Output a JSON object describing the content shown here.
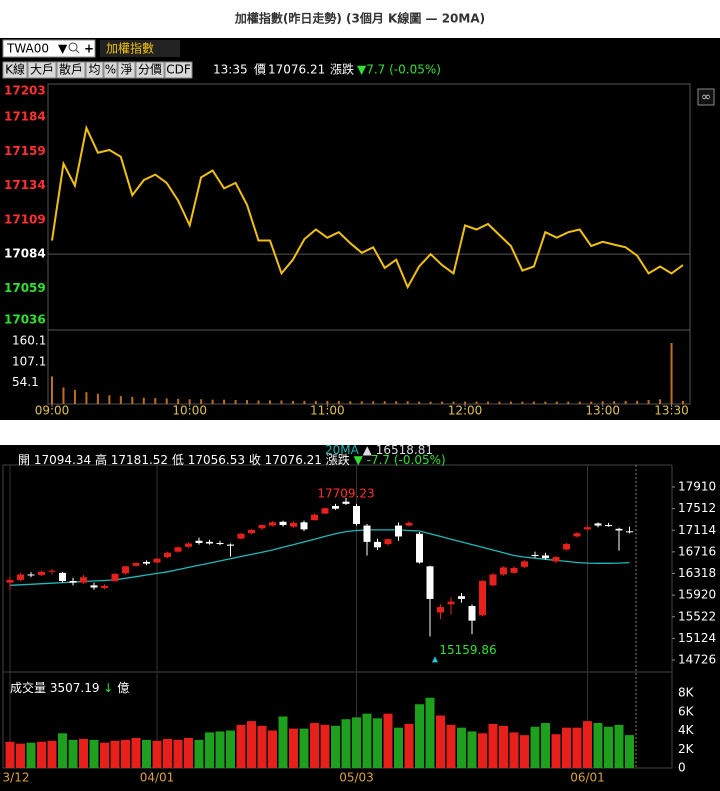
{
  "title": "加權指數(昨日走勢) (3個月 K線圖 — 20MA)",
  "toolbar": {
    "symbol": "TWA00",
    "name": "加權指數",
    "buttons": [
      "K線",
      "大戶",
      "散戶",
      "均",
      "%",
      "淨",
      "分價",
      "CDF"
    ],
    "time": "13:35",
    "price_label": "價",
    "change_label": "漲跌",
    "change": "▼7.7 (-0.05%)"
  },
  "quote": {
    "open_label": "開",
    "high_label": "高",
    "low_label": "低",
    "close_label": "收",
    "change_label": "漲跌",
    "change": "▼ -7.7 (-0.05%)",
    "ma_arrow": "▲",
    "volume_label": "成交量",
    "volume_arrow": "↓",
    "volume_unit": "億"
  },
  "chart_data": [
    {
      "type": "line",
      "color": "#f0c010",
      "x": [
        "09:00",
        "09:05",
        "09:10",
        "09:15",
        "09:20",
        "09:25",
        "09:30",
        "09:35",
        "09:40",
        "09:45",
        "09:50",
        "09:55",
        "10:00",
        "10:05",
        "10:10",
        "10:15",
        "10:20",
        "10:25",
        "10:30",
        "10:35",
        "10:40",
        "10:45",
        "10:50",
        "10:55",
        "11:00",
        "11:05",
        "11:10",
        "11:15",
        "11:20",
        "11:25",
        "11:30",
        "11:35",
        "11:40",
        "11:45",
        "11:50",
        "11:55",
        "12:00",
        "12:05",
        "12:10",
        "12:15",
        "12:20",
        "12:25",
        "12:30",
        "12:35",
        "12:40",
        "12:45",
        "12:50",
        "12:55",
        "13:00",
        "13:05",
        "13:10",
        "13:15",
        "13:20",
        "13:25",
        "13:30",
        "13:35"
      ],
      "values": [
        17094,
        17150,
        17134,
        17176,
        17158,
        17160,
        17155,
        17127,
        17138,
        17142,
        17136,
        17123,
        17105,
        17140,
        17145,
        17132,
        17136,
        17120,
        17094,
        17094,
        17070,
        17080,
        17095,
        17102,
        17096,
        17100,
        17092,
        17085,
        17089,
        17074,
        17080,
        17060,
        17075,
        17084,
        17076,
        17070,
        17105,
        17102,
        17106,
        17098,
        17090,
        17072,
        17075,
        17100,
        17096,
        17100,
        17102,
        17090,
        17093,
        17091,
        17089,
        17083,
        17070,
        17075,
        17070,
        17076
      ],
      "xlim": [
        "09:00",
        "13:35"
      ],
      "xticks": [
        "09:00",
        "10:00",
        "11:00",
        "12:00",
        "13:00",
        "13:30"
      ],
      "ylim": [
        17036,
        17203
      ],
      "yticks": [
        17036,
        17059,
        17084,
        17109,
        17134,
        17159,
        17184,
        17203
      ],
      "ytick_colors": [
        "#30e030",
        "#30e030",
        "#ffffff",
        "#ff3030",
        "#ff3030",
        "#ff3030",
        "#ff3030",
        "#ff3030"
      ],
      "ref_line": 17084
    },
    {
      "type": "bar",
      "color": "#c0701c",
      "x": [
        "09:00",
        "09:05",
        "09:10",
        "09:15",
        "09:20",
        "09:25",
        "09:30",
        "09:35",
        "09:40",
        "09:45",
        "09:50",
        "09:55",
        "10:00",
        "10:05",
        "10:10",
        "10:15",
        "10:20",
        "10:25",
        "10:30",
        "10:35",
        "10:40",
        "10:45",
        "10:50",
        "10:55",
        "11:00",
        "11:05",
        "11:10",
        "11:15",
        "11:20",
        "11:25",
        "11:30",
        "11:35",
        "11:40",
        "11:45",
        "11:50",
        "11:55",
        "12:00",
        "12:05",
        "12:10",
        "12:15",
        "12:20",
        "12:25",
        "12:30",
        "12:35",
        "12:40",
        "12:45",
        "12:50",
        "12:55",
        "13:00",
        "13:05",
        "13:10",
        "13:15",
        "13:20",
        "13:25",
        "13:30",
        "13:35"
      ],
      "values": [
        70,
        42,
        36,
        30,
        26,
        22,
        20,
        18,
        16,
        15,
        14,
        13,
        12,
        12,
        11,
        11,
        10,
        10,
        9,
        9,
        9,
        8,
        8,
        8,
        8,
        8,
        7,
        7,
        7,
        7,
        7,
        7,
        6,
        6,
        6,
        6,
        6,
        6,
        6,
        6,
        6,
        6,
        6,
        6,
        6,
        6,
        6,
        6,
        7,
        7,
        8,
        8,
        10,
        12,
        155,
        8
      ],
      "xlim": [
        "09:00",
        "13:35"
      ],
      "ylim": [
        0,
        160.1
      ],
      "yticks": [
        54.1,
        107.1,
        160.1
      ]
    },
    {
      "type": "candlestick",
      "up_color": "#e8201c",
      "down_color": "#ffffff",
      "categories": [
        "3/12",
        null,
        null,
        null,
        null,
        null,
        null,
        null,
        null,
        null,
        null,
        null,
        null,
        null,
        "04/01",
        null,
        null,
        null,
        null,
        null,
        null,
        null,
        null,
        null,
        null,
        null,
        null,
        null,
        null,
        null,
        null,
        null,
        null,
        "05/03",
        null,
        null,
        null,
        null,
        null,
        null,
        null,
        null,
        null,
        null,
        null,
        null,
        null,
        null,
        null,
        null,
        null,
        null,
        null,
        null,
        null,
        "06/01",
        null,
        null,
        null,
        null
      ],
      "open": [
        16150,
        16200,
        16300,
        16290,
        16350,
        16330,
        16180,
        16150,
        16100,
        16050,
        16180,
        16320,
        16460,
        16530,
        16520,
        16620,
        16720,
        16810,
        16920,
        16900,
        16880,
        16850,
        16960,
        17060,
        17150,
        17200,
        17270,
        17180,
        17260,
        17300,
        17420,
        17560,
        17640,
        17560,
        17200,
        16900,
        16860,
        17200,
        17200,
        17050,
        16450,
        15600,
        15750,
        15900,
        15720,
        15550,
        16100,
        16300,
        16330,
        16440,
        16660,
        16650,
        16540,
        16760,
        17000,
        17130,
        17240,
        17210,
        17140,
        17094.34
      ],
      "high": [
        16260,
        16330,
        16340,
        16370,
        16400,
        16340,
        16240,
        16290,
        16150,
        16120,
        16330,
        16460,
        16520,
        16560,
        16600,
        16720,
        16820,
        16890,
        16980,
        16940,
        16920,
        16870,
        17060,
        17140,
        17220,
        17280,
        17290,
        17280,
        17290,
        17420,
        17530,
        17600,
        17709.23,
        17600,
        17230,
        16960,
        16960,
        17260,
        17280,
        17080,
        16460,
        15750,
        15880,
        15960,
        15750,
        16200,
        16330,
        16450,
        16450,
        16560,
        16720,
        16700,
        16640,
        16880,
        17080,
        17190,
        17260,
        17250,
        17160,
        17181.52
      ],
      "low": [
        16020,
        16180,
        16250,
        16270,
        16300,
        16150,
        16100,
        16130,
        16020,
        16030,
        16160,
        16300,
        16440,
        16470,
        16510,
        16600,
        16700,
        16790,
        16850,
        16850,
        16840,
        16630,
        16950,
        17040,
        17120,
        17180,
        17180,
        17160,
        17100,
        17290,
        17410,
        17490,
        17580,
        17200,
        16650,
        16750,
        16830,
        16920,
        17180,
        16500,
        15159.86,
        15480,
        15560,
        15780,
        15200,
        15530,
        16080,
        16280,
        16310,
        16420,
        16610,
        16570,
        16510,
        16740,
        16980,
        17110,
        17170,
        17180,
        16740,
        17056.53
      ],
      "close": [
        16200,
        16300,
        16290,
        16350,
        16370,
        16180,
        16150,
        16250,
        16060,
        16090,
        16310,
        16450,
        16510,
        16500,
        16590,
        16700,
        16800,
        16870,
        16880,
        16870,
        16860,
        16830,
        17050,
        17120,
        17210,
        17260,
        17210,
        17250,
        17130,
        17400,
        17520,
        17510,
        17600,
        17230,
        16900,
        16800,
        16950,
        17000,
        17250,
        16520,
        15850,
        15700,
        15800,
        15850,
        15450,
        16180,
        16300,
        16430,
        16420,
        16540,
        16640,
        16600,
        16620,
        16860,
        17060,
        17170,
        17200,
        17190,
        17110,
        17076.21
      ],
      "series": [
        {
          "name": "20MA",
          "color": "#20b8b8",
          "values": [
            16100,
            16110,
            16120,
            16130,
            16140,
            16150,
            16160,
            16170,
            16180,
            16190,
            16200,
            16230,
            16260,
            16290,
            16320,
            16350,
            16390,
            16430,
            16470,
            16510,
            16550,
            16590,
            16630,
            16670,
            16710,
            16750,
            16800,
            16850,
            16900,
            16950,
            17000,
            17050,
            17090,
            17110,
            17120,
            17120,
            17120,
            17120,
            17110,
            17100,
            17050,
            17000,
            16950,
            16900,
            16850,
            16800,
            16750,
            16700,
            16650,
            16620,
            16600,
            16580,
            16560,
            16540,
            16520,
            16510,
            16505,
            16505,
            16510,
            16518.81
          ]
        }
      ],
      "ylim": [
        14726,
        17910
      ],
      "yticks": [
        14726,
        15124,
        15522,
        15920,
        16318,
        16716,
        17114,
        17512,
        17910
      ]
    },
    {
      "type": "bar",
      "up_color": "#e8201c",
      "down_color": "#1ea01e",
      "categories": [
        "3/12",
        null,
        null,
        null,
        null,
        null,
        null,
        null,
        null,
        null,
        null,
        null,
        null,
        null,
        "04/01",
        null,
        null,
        null,
        null,
        null,
        null,
        null,
        null,
        null,
        null,
        null,
        null,
        null,
        null,
        null,
        null,
        null,
        null,
        "05/03",
        null,
        null,
        null,
        null,
        null,
        null,
        null,
        null,
        null,
        null,
        null,
        null,
        null,
        null,
        null,
        null,
        null,
        null,
        null,
        null,
        null,
        "06/01",
        null,
        null,
        null,
        null
      ],
      "values": [
        2800,
        2600,
        2700,
        2800,
        2900,
        3700,
        3000,
        3100,
        3000,
        2700,
        2900,
        3000,
        3200,
        3000,
        2900,
        3100,
        3000,
        3200,
        3000,
        3800,
        3900,
        4000,
        4600,
        5000,
        4500,
        4000,
        5500,
        4200,
        4200,
        4800,
        4600,
        4500,
        5200,
        5400,
        5800,
        5300,
        5800,
        4300,
        4700,
        6800,
        7500,
        5600,
        4600,
        4300,
        3900,
        3700,
        4700,
        4500,
        3800,
        3500,
        4400,
        4800,
        3600,
        4300,
        4300,
        5000,
        4800,
        4400,
        4600,
        3507.19
      ],
      "ylim": [
        0,
        8000
      ],
      "yticks": [
        0,
        {
          "value": 2000,
          "label": "2K"
        },
        {
          "value": 4000,
          "label": "4K"
        },
        {
          "value": 6000,
          "label": "6K"
        },
        {
          "value": 8000,
          "label": "8K"
        }
      ]
    }
  ]
}
